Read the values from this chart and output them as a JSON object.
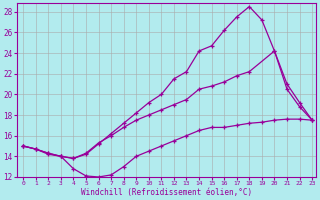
{
  "xlabel": "Windchill (Refroidissement éolien,°C)",
  "line_color": "#990099",
  "bg_color": "#b2ebee",
  "grid_color": "#aaaaaa",
  "xlim": [
    -0.5,
    23.3
  ],
  "ylim": [
    12,
    28.8
  ],
  "yticks": [
    12,
    14,
    16,
    18,
    20,
    22,
    24,
    26,
    28
  ],
  "xticks": [
    0,
    1,
    2,
    3,
    4,
    5,
    6,
    7,
    8,
    9,
    10,
    11,
    12,
    13,
    14,
    15,
    16,
    17,
    18,
    19,
    20,
    21,
    22,
    23
  ],
  "line_top_x": [
    0,
    1,
    2,
    3,
    4,
    5,
    6,
    7,
    8,
    9,
    10,
    11,
    12,
    13,
    14,
    15,
    16,
    17,
    18,
    19,
    20,
    21,
    22,
    23
  ],
  "line_top_y": [
    15.0,
    14.7,
    14.3,
    14.0,
    13.8,
    14.2,
    15.2,
    16.2,
    17.2,
    18.2,
    19.2,
    20.0,
    21.5,
    22.2,
    24.2,
    24.7,
    26.2,
    27.5,
    28.5,
    27.2,
    24.2,
    20.5,
    18.8,
    17.5
  ],
  "line_mid_x": [
    0,
    1,
    2,
    3,
    4,
    5,
    6,
    7,
    8,
    9,
    10,
    11,
    12,
    13,
    14,
    15,
    16,
    17,
    18,
    20,
    21,
    22,
    23
  ],
  "line_mid_y": [
    15.0,
    14.7,
    14.3,
    14.0,
    13.8,
    14.3,
    15.3,
    16.0,
    16.8,
    17.5,
    18.0,
    18.5,
    19.0,
    19.5,
    20.5,
    20.8,
    21.2,
    21.8,
    22.2,
    24.2,
    21.0,
    19.2,
    17.5
  ],
  "line_bot_x": [
    0,
    1,
    2,
    3,
    4,
    5,
    6,
    7,
    8,
    9,
    10,
    11,
    12,
    13,
    14,
    15,
    16,
    17,
    18,
    19,
    20,
    21,
    22,
    23
  ],
  "line_bot_y": [
    15.0,
    14.7,
    14.2,
    14.0,
    12.8,
    12.1,
    12.0,
    12.2,
    13.0,
    14.0,
    14.5,
    15.0,
    15.5,
    16.0,
    16.5,
    16.8,
    16.8,
    17.0,
    17.2,
    17.3,
    17.5,
    17.6,
    17.6,
    17.5
  ]
}
